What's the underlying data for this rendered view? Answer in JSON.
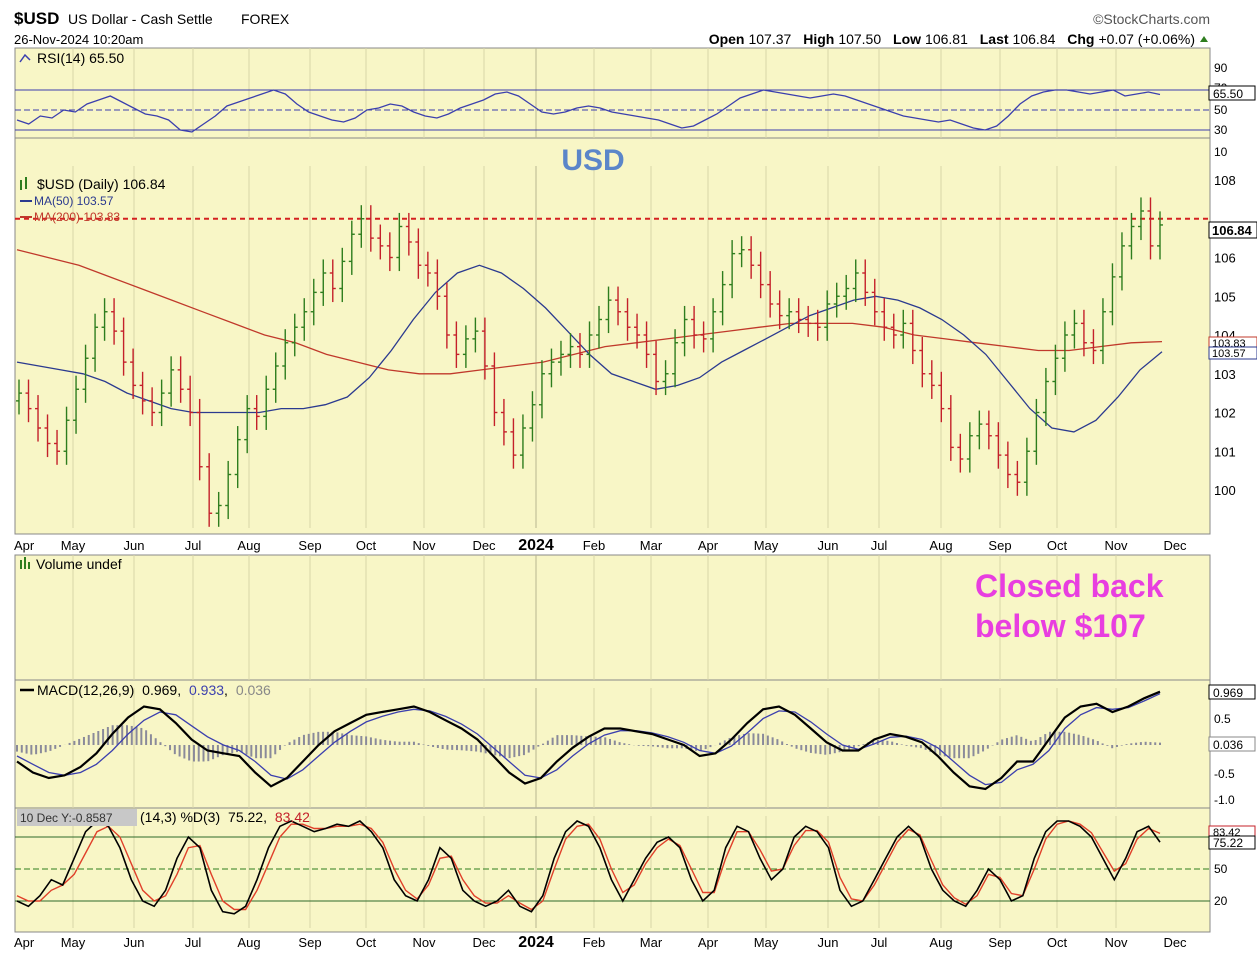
{
  "header": {
    "symbol": "$USD",
    "name": "US Dollar - Cash Settle",
    "exchange": "FOREX",
    "datetime": "26-Nov-2024 10:20am",
    "watermark": "©StockCharts.com",
    "open_label": "Open",
    "open": "107.37",
    "high_label": "High",
    "high": "107.50",
    "low_label": "Low",
    "low": "106.81",
    "last_label": "Last",
    "last": "106.84",
    "chg_label": "Chg",
    "chg": "+0.07 (+0.06%)"
  },
  "colors": {
    "panel_bg": "#f8f6c6",
    "grid": "#d9d6a8",
    "up": "#2e7d1e",
    "down": "#c4202a",
    "ma50": "#2b3a8f",
    "ma200": "#c0392b",
    "rsi": "#3b3fae",
    "annotation": "#e83ee0",
    "usd_title": "#5b86c9"
  },
  "annotations": {
    "title": "USD",
    "note_line1": "Closed back",
    "note_line2": "below $107"
  },
  "time_axis": {
    "labels": [
      "Apr",
      "May",
      "Jun",
      "Jul",
      "Aug",
      "Sep",
      "Oct",
      "Nov",
      "Dec",
      "2024",
      "Feb",
      "Mar",
      "Apr",
      "May",
      "Jun",
      "Jul",
      "Aug",
      "Sep",
      "Oct",
      "Nov",
      "Dec"
    ],
    "bold_label": "2024"
  },
  "chart_data": [
    {
      "type": "line",
      "panel": "rsi",
      "legend": "RSI(14) 65.50",
      "y_ticks": [
        10,
        30,
        50,
        70,
        90
      ],
      "reference_lines": [
        30,
        50,
        70
      ],
      "last_value_label": "65.50",
      "ylim": [
        0,
        100
      ],
      "series": [
        {
          "name": "RSI(14)",
          "values": [
            40,
            36,
            44,
            42,
            50,
            48,
            56,
            60,
            64,
            58,
            52,
            46,
            44,
            40,
            30,
            28,
            36,
            44,
            54,
            58,
            62,
            66,
            70,
            66,
            56,
            48,
            44,
            40,
            38,
            42,
            50,
            52,
            56,
            54,
            48,
            44,
            42,
            46,
            52,
            56,
            60,
            66,
            68,
            64,
            56,
            48,
            46,
            48,
            52,
            54,
            52,
            48,
            46,
            44,
            42,
            40,
            36,
            32,
            34,
            40,
            46,
            54,
            62,
            66,
            70,
            68,
            66,
            64,
            62,
            64,
            66,
            64,
            60,
            56,
            52,
            48,
            44,
            42,
            40,
            38,
            40,
            36,
            32,
            30,
            34,
            44,
            56,
            64,
            68,
            70,
            70,
            68,
            66,
            68,
            70,
            64,
            66,
            68,
            65.5
          ]
        }
      ]
    },
    {
      "type": "candlestick",
      "panel": "price",
      "legend": "$USD (Daily) 106.84",
      "ma50_legend": "MA(50) 103.57",
      "ma200_legend": "MA(200) 103.83",
      "y_ticks": [
        100,
        101,
        102,
        103,
        104,
        105,
        106,
        107,
        108
      ],
      "ylim": [
        99.0,
        108.5
      ],
      "last_value": 106.84,
      "last_value_label": "106.84",
      "ma200_label": "103.83",
      "ma50_label": "103.57",
      "horizontal_line": 107.0,
      "close": [
        102.5,
        102.1,
        101.6,
        101.2,
        101.0,
        101.8,
        102.6,
        103.4,
        104.2,
        104.6,
        104.1,
        103.3,
        102.7,
        102.3,
        102.0,
        102.5,
        103.1,
        102.6,
        102.0,
        100.6,
        99.4,
        99.6,
        100.4,
        101.3,
        102.1,
        101.9,
        102.6,
        103.2,
        103.8,
        104.2,
        104.6,
        105.1,
        105.6,
        105.2,
        105.9,
        106.6,
        107.0,
        106.5,
        106.3,
        106.0,
        106.8,
        106.4,
        105.8,
        105.6,
        105.0,
        104.0,
        103.5,
        103.9,
        104.1,
        103.2,
        102.0,
        101.5,
        100.9,
        101.6,
        102.2,
        103.0,
        103.3,
        103.5,
        103.7,
        103.5,
        104.0,
        104.4,
        104.9,
        104.6,
        104.2,
        104.0,
        103.5,
        102.8,
        103.0,
        103.8,
        104.4,
        104.0,
        103.9,
        104.6,
        105.3,
        106.1,
        106.2,
        105.8,
        105.3,
        104.8,
        104.5,
        104.6,
        104.4,
        104.3,
        104.2,
        104.8,
        105.0,
        105.2,
        105.6,
        105.1,
        104.6,
        104.2,
        104.0,
        104.3,
        103.6,
        103.0,
        102.7,
        102.1,
        101.1,
        100.8,
        101.4,
        101.7,
        101.4,
        100.9,
        100.4,
        100.2,
        101.0,
        102.0,
        102.8,
        103.4,
        104.0,
        104.3,
        103.8,
        103.6,
        104.6,
        105.5,
        106.3,
        106.8,
        107.2,
        106.3,
        106.84
      ],
      "ma50": [
        103.3,
        103.2,
        103.1,
        103.0,
        102.8,
        102.5,
        102.3,
        102.1,
        102.0,
        102.0,
        102.0,
        102.0,
        102.1,
        102.1,
        102.2,
        102.4,
        102.9,
        103.6,
        104.4,
        105.1,
        105.6,
        105.8,
        105.6,
        105.2,
        104.7,
        104.1,
        103.5,
        103.0,
        102.8,
        102.6,
        102.7,
        102.9,
        103.3,
        103.6,
        103.9,
        104.2,
        104.5,
        104.7,
        104.9,
        105.0,
        104.9,
        104.7,
        104.4,
        104.0,
        103.5,
        102.8,
        102.1,
        101.6,
        101.5,
        101.8,
        102.4,
        103.1,
        103.57
      ],
      "ma200": [
        106.2,
        106.0,
        105.8,
        105.5,
        105.2,
        104.9,
        104.6,
        104.3,
        104.0,
        103.8,
        103.5,
        103.3,
        103.1,
        103.0,
        103.0,
        103.1,
        103.2,
        103.3,
        103.5,
        103.7,
        103.8,
        103.9,
        104.0,
        104.1,
        104.2,
        104.3,
        104.3,
        104.3,
        104.2,
        104.0,
        103.9,
        103.8,
        103.7,
        103.6,
        103.6,
        103.7,
        103.8,
        103.83
      ]
    },
    {
      "type": "bar",
      "panel": "volume",
      "legend": "Volume undef",
      "values": []
    },
    {
      "type": "line",
      "panel": "macd",
      "legend_prefix": "MACD(12,26,9)",
      "legend_macd": "0.969",
      "legend_signal": "0.933",
      "legend_hist": "0.036",
      "y_ticks": [
        -1.0,
        -0.5,
        0.5
      ],
      "ylim": [
        -1.15,
        1.15
      ],
      "last_macd_label": "0.969",
      "last_hist_label": "0.036",
      "series": [
        {
          "name": "MACD",
          "values": [
            -0.3,
            -0.5,
            -0.6,
            -0.55,
            -0.4,
            -0.15,
            0.2,
            0.5,
            0.7,
            0.65,
            0.4,
            0.1,
            -0.1,
            -0.15,
            -0.2,
            -0.5,
            -0.75,
            -0.6,
            -0.3,
            0.0,
            0.25,
            0.4,
            0.55,
            0.6,
            0.65,
            0.7,
            0.6,
            0.45,
            0.3,
            0.1,
            -0.2,
            -0.5,
            -0.7,
            -0.6,
            -0.3,
            -0.05,
            0.15,
            0.3,
            0.3,
            0.25,
            0.2,
            0.1,
            0.0,
            -0.2,
            -0.15,
            0.1,
            0.4,
            0.65,
            0.7,
            0.55,
            0.3,
            0.05,
            -0.1,
            -0.1,
            0.1,
            0.2,
            0.15,
            0.05,
            -0.2,
            -0.5,
            -0.75,
            -0.8,
            -0.6,
            -0.3,
            -0.3,
            0.1,
            0.5,
            0.7,
            0.75,
            0.6,
            0.7,
            0.85,
            0.969
          ]
        },
        {
          "name": "Signal",
          "values": [
            -0.2,
            -0.35,
            -0.5,
            -0.55,
            -0.5,
            -0.35,
            -0.1,
            0.2,
            0.45,
            0.6,
            0.55,
            0.35,
            0.15,
            0.0,
            -0.1,
            -0.3,
            -0.55,
            -0.62,
            -0.45,
            -0.2,
            0.05,
            0.25,
            0.42,
            0.52,
            0.6,
            0.65,
            0.62,
            0.52,
            0.38,
            0.2,
            -0.05,
            -0.3,
            -0.55,
            -0.6,
            -0.45,
            -0.2,
            0.02,
            0.18,
            0.26,
            0.26,
            0.22,
            0.15,
            0.05,
            -0.1,
            -0.15,
            -0.02,
            0.22,
            0.48,
            0.62,
            0.6,
            0.42,
            0.2,
            0.0,
            -0.08,
            0.02,
            0.14,
            0.16,
            0.1,
            -0.05,
            -0.3,
            -0.55,
            -0.72,
            -0.68,
            -0.45,
            -0.35,
            -0.1,
            0.3,
            0.55,
            0.68,
            0.65,
            0.68,
            0.8,
            0.933
          ]
        },
        {
          "name": "Histogram",
          "values": [
            -0.1,
            -0.15,
            -0.1,
            0.0,
            0.1,
            0.2,
            0.3,
            0.3,
            0.25,
            0.05,
            -0.15,
            -0.25,
            -0.25,
            -0.15,
            -0.1,
            -0.2,
            -0.2,
            0.02,
            0.15,
            0.2,
            0.2,
            0.15,
            0.13,
            0.08,
            0.05,
            0.05,
            -0.02,
            -0.07,
            -0.08,
            -0.1,
            -0.15,
            -0.2,
            -0.15,
            0.0,
            0.15,
            0.15,
            0.13,
            0.12,
            0.04,
            -0.01,
            -0.02,
            -0.05,
            -0.05,
            -0.1,
            0.0,
            0.12,
            0.18,
            0.17,
            0.08,
            -0.05,
            -0.12,
            -0.15,
            -0.1,
            -0.02,
            0.08,
            0.06,
            -0.01,
            -0.05,
            -0.15,
            -0.2,
            -0.2,
            -0.08,
            0.08,
            0.15,
            0.05,
            0.2,
            0.2,
            0.15,
            0.07,
            -0.05,
            0.02,
            0.05,
            0.036
          ]
        }
      ]
    },
    {
      "type": "line",
      "panel": "stochastic",
      "cursor_readout": "10 Dec Y:-0.8587",
      "legend_prefix": "(14,3) %D(3)",
      "legend_k": "75.22",
      "legend_d": "83.42",
      "y_ticks": [
        20,
        50,
        80
      ],
      "reference_lines": [
        20,
        50,
        80
      ],
      "ylim": [
        0,
        100
      ],
      "last_k_label": "75.22",
      "last_d_label": "83.42",
      "series": [
        {
          "name": "%K",
          "values": [
            20,
            15,
            25,
            40,
            35,
            60,
            85,
            95,
            90,
            70,
            40,
            20,
            15,
            30,
            60,
            80,
            70,
            30,
            10,
            8,
            15,
            40,
            70,
            90,
            95,
            90,
            85,
            88,
            92,
            90,
            95,
            85,
            70,
            40,
            25,
            20,
            40,
            70,
            60,
            30,
            20,
            15,
            20,
            30,
            15,
            10,
            25,
            60,
            85,
            95,
            90,
            70,
            40,
            20,
            40,
            60,
            75,
            80,
            70,
            40,
            20,
            30,
            70,
            90,
            85,
            60,
            40,
            50,
            80,
            90,
            85,
            70,
            30,
            15,
            20,
            40,
            60,
            80,
            90,
            80,
            50,
            30,
            20,
            15,
            30,
            50,
            40,
            20,
            25,
            60,
            85,
            95,
            95,
            90,
            80,
            60,
            40,
            60,
            85,
            90,
            75.22
          ]
        },
        {
          "name": "%D",
          "values": [
            25,
            20,
            20,
            30,
            35,
            45,
            65,
            85,
            90,
            80,
            55,
            30,
            20,
            25,
            45,
            70,
            72,
            45,
            20,
            12,
            12,
            30,
            55,
            80,
            92,
            92,
            88,
            88,
            90,
            90,
            92,
            88,
            75,
            50,
            30,
            22,
            35,
            60,
            62,
            40,
            25,
            18,
            18,
            25,
            18,
            12,
            20,
            50,
            78,
            90,
            92,
            78,
            50,
            28,
            35,
            55,
            70,
            78,
            72,
            50,
            28,
            28,
            60,
            85,
            85,
            68,
            48,
            50,
            72,
            86,
            86,
            75,
            42,
            22,
            20,
            35,
            55,
            75,
            87,
            82,
            58,
            35,
            23,
            17,
            25,
            45,
            42,
            27,
            25,
            50,
            78,
            92,
            95,
            92,
            84,
            66,
            48,
            55,
            78,
            88,
            83.42
          ]
        }
      ]
    }
  ]
}
